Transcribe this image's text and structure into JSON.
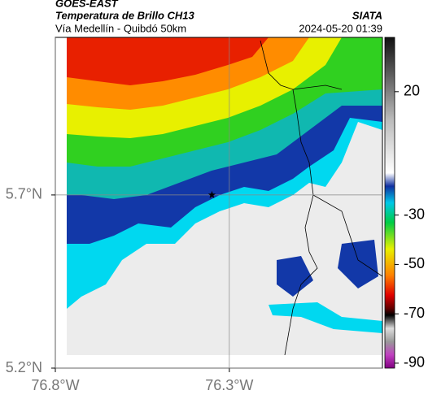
{
  "header": {
    "title": "GOES-EAST",
    "subtitle": "Temperatura de Brillo CH13",
    "location": "Vía Medellín - Quibdó 50km",
    "source": "SIATA",
    "datetime": "2024-05-20 01:39"
  },
  "map": {
    "xlim": [
      -76.8,
      -75.86
    ],
    "ylim": [
      5.2,
      6.155
    ],
    "xticks": [
      {
        "value": -76.8,
        "label": "76.8°W"
      },
      {
        "value": -76.3,
        "label": "76.3°W"
      }
    ],
    "yticks": [
      {
        "value": 5.7,
        "label": "5.7°N"
      },
      {
        "value": 5.2,
        "label": "5.2°N"
      }
    ],
    "marker": {
      "lon": -76.35,
      "lat": 5.7
    }
  },
  "colorbar": {
    "lim": [
      -92,
      42
    ],
    "ticks": [
      20,
      -30,
      -50,
      -70,
      -90
    ]
  }
}
